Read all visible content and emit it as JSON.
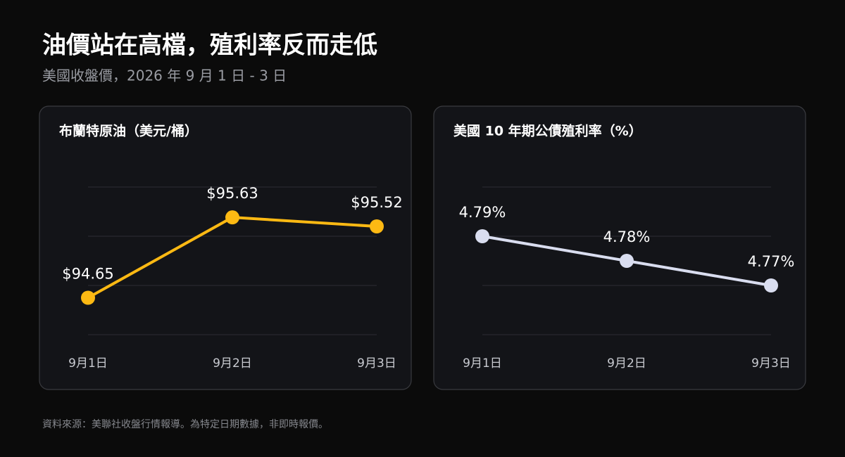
{
  "title": "油價站在高檔，殖利率反而走低",
  "subtitle": "美國收盤價，2026 年 9 月 1 日 - 3 日",
  "source": "資料來源：美聯社收盤行情報導。為特定日期數據，非即時報價。",
  "chart_data": [
    {
      "type": "line",
      "title": "布蘭特原油（美元/桶）",
      "categories": [
        "9月1日",
        "9月2日",
        "9月3日"
      ],
      "values": [
        94.65,
        95.63,
        95.52
      ],
      "value_labels": [
        "$94.65",
        "$95.63",
        "$95.52"
      ],
      "color": "#fdb913",
      "ylim": [
        94.2,
        96.0
      ],
      "yticks": [
        94.2,
        94.8,
        95.4,
        96.0
      ],
      "grid": true
    },
    {
      "type": "line",
      "title": "美國 10 年期公債殖利率（%）",
      "categories": [
        "9月1日",
        "9月2日",
        "9月3日"
      ],
      "values": [
        4.79,
        4.78,
        4.77
      ],
      "value_labels": [
        "4.79%",
        "4.78%",
        "4.77%"
      ],
      "color": "#d9ddef",
      "ylim": [
        4.75,
        4.81
      ],
      "yticks": [
        4.75,
        4.77,
        4.79,
        4.81
      ],
      "grid": true
    }
  ]
}
